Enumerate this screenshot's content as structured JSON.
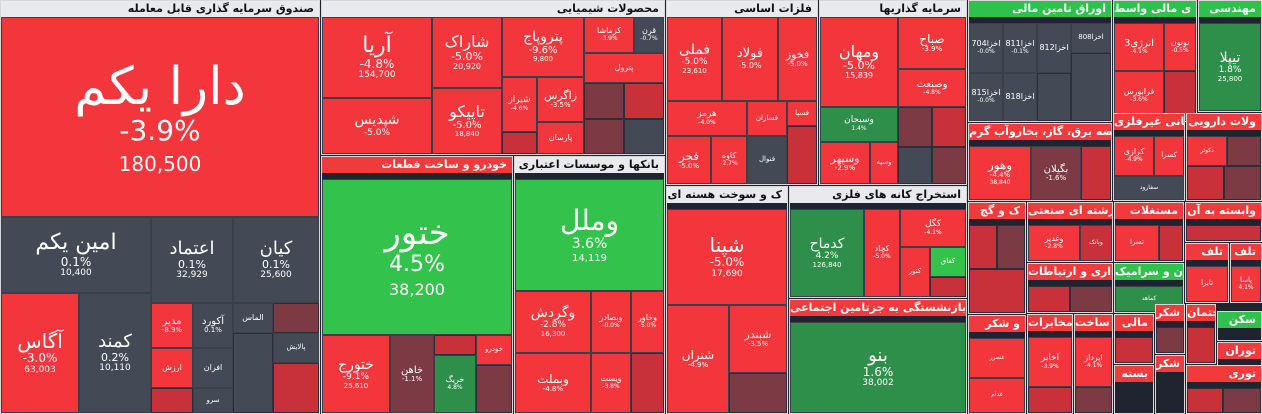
{
  "sectors": {
    "fund": "صندوق سرمایه گذاری قابل معامله",
    "chem": "محصولات شیمیایی",
    "metal": "فلزات اساسی",
    "invest": "سرمایه گذاریها",
    "finance": "اوراق تامین مالی",
    "fin_other": "ی مالی واسط",
    "eng": "مهندسی",
    "auto": "خودرو و ساخت قطعات",
    "banks": "بانکها و موسسات اعتباری",
    "oil": "ک و سوخت هسته ای",
    "mining": "استخراج کانه های فلزی",
    "social": "ق بازنشستگی به جزتامین اجتماعی",
    "utility": "عرضه برق، گاز، بخاروآب گرم",
    "nonmetal": "کانی غیرفلزی",
    "pharma": "ولات دارویی",
    "agri": "ک و گچ",
    "industrial": "رشته ای صنعتی",
    "realestate": "مستغلات",
    "dependent": "وابسته به آن",
    "telecom": "اری و ارتباطات",
    "cement": "ان و سرامیک",
    "misc1": "تلف",
    "food": "و شکر",
    "retail": "مخابرات",
    "computer": "ساخت",
    "mali": "مالی",
    "shekar": "شکر",
    "sakhtemoon": "ساختمان",
    "sken": "سکن",
    "packaging": "بسته",
    "tour": "توری",
    "tourism": "توران"
  },
  "tiles": {
    "daraykam": {
      "name": "دارا یکم",
      "pct": "-3.9%",
      "val": "180,500"
    },
    "aminykam": {
      "name": "امین یکم",
      "pct": "0.1%",
      "val": "10,400"
    },
    "etemad": {
      "name": "اعتماد",
      "pct": "0.1%",
      "val": "32,929"
    },
    "kian": {
      "name": "کیان",
      "pct": "0.1%",
      "val": "25,600"
    },
    "agas": {
      "name": "آگاس",
      "pct": "-3.0%",
      "val": "63,003"
    },
    "kamand": {
      "name": "کمند",
      "pct": "0.2%",
      "val": "10,110"
    },
    "modir": {
      "name": "مدیر",
      "pct": "-8.9%"
    },
    "akord": {
      "name": "آکورد",
      "pct": "0.1%"
    },
    "almas": {
      "name": "الماس"
    },
    "afran": {
      "name": "افران"
    },
    "arzesh": {
      "name": "ارزش"
    },
    "sarv": {
      "name": "سرو"
    },
    "palayesh": {
      "name": "پالایش"
    },
    "arya": {
      "name": "آریا",
      "pct": "-4.8%",
      "val": "154,700"
    },
    "sharak": {
      "name": "شاراک",
      "pct": "-5.0%",
      "val": "20,920"
    },
    "petrol": {
      "name": "پتروپاج",
      "pct": "-9.6%",
      "val": "9,800"
    },
    "kermasha": {
      "name": "کرماشا",
      "pct": "-3.9%"
    },
    "ghran": {
      "name": "قرن",
      "pct": "-0.7%"
    },
    "petrol2": {
      "name": "پترول"
    },
    "shepdis": {
      "name": "شپدیس",
      "pct": "-5.0%"
    },
    "tapiko": {
      "name": "تاپیکو",
      "pct": "-5.0%",
      "val": "18,840"
    },
    "shiraz": {
      "name": "شیراز",
      "pct": "-4.6%"
    },
    "zagros": {
      "name": "زاگرس",
      "pct": "-3.5%"
    },
    "parsan": {
      "name": "پارسان"
    },
    "foolad": {
      "name": "فولاد",
      "pct": "-5.0%"
    },
    "femli": {
      "name": "فملی",
      "pct": "-5.0%",
      "val": "23,610"
    },
    "fkhoz": {
      "name": "فخوز",
      "pct": "-5.0%"
    },
    "hormoz": {
      "name": "هرمز",
      "pct": "-4.0%"
    },
    "fsazan": {
      "name": "فسازان"
    },
    "fasa": {
      "name": "فسپا"
    },
    "fajr": {
      "name": "فجر",
      "pct": "-5.0%"
    },
    "kave": {
      "name": "کاوه",
      "pct": "-2.7%"
    },
    "fenavar": {
      "name": "فنوال"
    },
    "vmahan": {
      "name": "ومهان",
      "pct": "-5.0%",
      "val": "15,839"
    },
    "sabah": {
      "name": "صباح",
      "pct": "-3.9%"
    },
    "vsanat": {
      "name": "وصنعت",
      "pct": "-4.8%"
    },
    "vsbhan": {
      "name": "وسبحان",
      "pct": "1.4%"
    },
    "vsepehr": {
      "name": "وسپهر",
      "pct": "-2.9%"
    },
    "vsapa": {
      "name": "وسپه"
    },
    "a704": {
      "name": "704اخزا",
      "pct": "-0.0%"
    },
    "a811": {
      "name": "811اخزا",
      "pct": "-0.1%"
    },
    "a812": {
      "name": "812اخزا"
    },
    "a808": {
      "name": "808اخزا"
    },
    "a815": {
      "name": "815اخزا",
      "pct": "-0.0%"
    },
    "a818": {
      "name": "818اخزا"
    },
    "anarzhi": {
      "name": "انرژی3",
      "pct": "-4.1%"
    },
    "tonon": {
      "name": "تونون",
      "pct": "-0.5%"
    },
    "farabors": {
      "name": "فرابورس",
      "pct": "-3.6%"
    },
    "tipla": {
      "name": "تیپلا",
      "pct": "1.8%",
      "val": "25,800"
    },
    "khatoor": {
      "name": "ختور",
      "pct": "4.5%",
      "val": "38,200"
    },
    "khatorh": {
      "name": "ختورج",
      "pct": "-9.1%",
      "val": "25,610"
    },
    "khaan": {
      "name": "خاهن",
      "pct": "-1.1%"
    },
    "kharig": {
      "name": "خریگ",
      "pct": "4.8%"
    },
    "khodro": {
      "name": "خودرو"
    },
    "vamal": {
      "name": "وملل",
      "pct": "3.6%",
      "val": "14,119"
    },
    "vgardesh": {
      "name": "وگردش",
      "pct": "-2.8%",
      "val": "16,300"
    },
    "vsadr": {
      "name": "وبصادر",
      "pct": "-0.0%"
    },
    "vkhavar": {
      "name": "وخاور",
      "pct": "-5.0%"
    },
    "vbmelat": {
      "name": "وبملت",
      "pct": "-4.8%"
    },
    "vist": {
      "name": "ویست",
      "pct": "-3.8%"
    },
    "shepna": {
      "name": "شپنا",
      "pct": "-5.0%",
      "val": "17,690"
    },
    "shtran": {
      "name": "شتران",
      "pct": "-4.9%"
    },
    "shbnder": {
      "name": "شبندر",
      "pct": "-3.5%"
    },
    "kdamah": {
      "name": "کدماح",
      "pct": "4.2%",
      "val": "126,840"
    },
    "kgal": {
      "name": "کگل",
      "pct": "-4.1%"
    },
    "kjad": {
      "name": "کچاد",
      "pct": "-5.0%"
    },
    "kafagh": {
      "name": "کفاق"
    },
    "kanor": {
      "name": "کنور"
    },
    "beno": {
      "name": "بنو",
      "pct": "1.6%",
      "val": "38,002"
    },
    "vhor": {
      "name": "وهور",
      "pct": "-4.4%",
      "val": "38,840"
    },
    "bgilan": {
      "name": "بگیلان",
      "pct": "-1.6%"
    },
    "karazi": {
      "name": "کرازی",
      "pct": "-4.9%"
    },
    "kesra": {
      "name": "کسرا"
    },
    "saflord": {
      "name": "سفارود"
    },
    "dkor": {
      "name": "دکوثر"
    },
    "vghadir": {
      "name": "وغدیر",
      "pct": "-2.8%"
    },
    "vbank": {
      "name": "وبانک"
    },
    "tesra": {
      "name": "تسرا"
    },
    "tayra": {
      "name": "تایرا"
    },
    "kmaad": {
      "name": "کماهد"
    },
    "pasa": {
      "name": "پاسا",
      "pct": "4.1%"
    },
    "ghasr": {
      "name": "غسرر"
    },
    "akhaber": {
      "name": "اخابر",
      "pct": "-3.9%"
    },
    "apardaz": {
      "name": "اپرداز",
      "pct": "-4.1%"
    },
    "gdam": {
      "name": "غدام"
    }
  }
}
